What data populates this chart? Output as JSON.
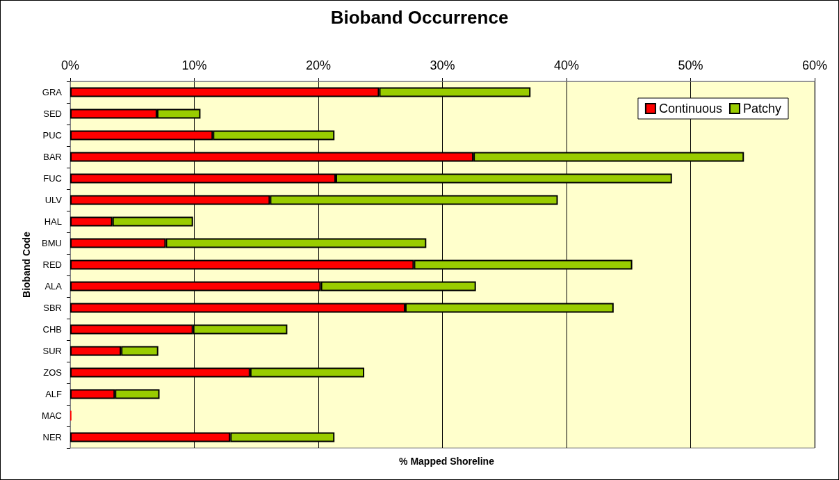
{
  "chart_data": {
    "type": "bar",
    "orientation": "horizontal",
    "stacked": true,
    "title": "Bioband Occurrence",
    "xlabel": "% Mapped Shoreline",
    "ylabel": "Bioband Code",
    "categories": [
      "GRA",
      "SED",
      "PUC",
      "BAR",
      "FUC",
      "ULV",
      "HAL",
      "BMU",
      "RED",
      "ALA",
      "SBR",
      "CHB",
      "SUR",
      "ZOS",
      "ALF",
      "MAC",
      "NER"
    ],
    "series": [
      {
        "name": "Continuous",
        "color": "#ff0000",
        "values": [
          24.9,
          7.0,
          11.5,
          32.5,
          21.4,
          16.1,
          3.4,
          7.7,
          27.7,
          20.2,
          27.0,
          9.9,
          4.1,
          14.5,
          3.6,
          0.1,
          12.9
        ]
      },
      {
        "name": "Patchy",
        "color": "#99cc00",
        "values": [
          12.2,
          3.5,
          9.8,
          21.8,
          27.1,
          23.2,
          6.5,
          21.0,
          17.6,
          12.5,
          16.8,
          7.6,
          3.0,
          9.2,
          3.6,
          null,
          8.4
        ]
      }
    ],
    "xlim": [
      0,
      60
    ],
    "xticks": [
      {
        "value": 0,
        "label": "0%"
      },
      {
        "value": 10,
        "label": "10%"
      },
      {
        "value": 20,
        "label": "20%"
      },
      {
        "value": 30,
        "label": "30%"
      },
      {
        "value": 40,
        "label": "40%"
      },
      {
        "value": 50,
        "label": "50%"
      },
      {
        "value": 60,
        "label": "60%"
      }
    ],
    "grid": "x",
    "legend": "top right"
  }
}
